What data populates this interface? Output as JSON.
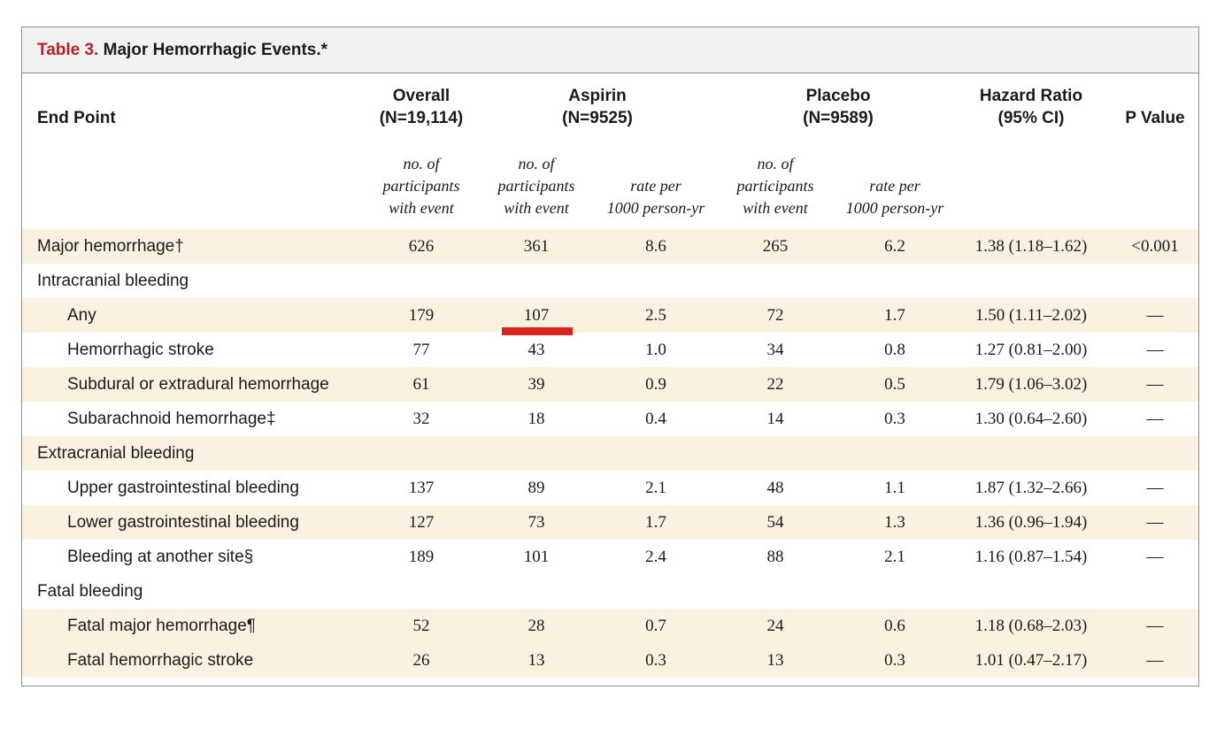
{
  "table": {
    "title_num": "Table 3.",
    "title_text": "Major Hemorrhagic Events.*",
    "headers": {
      "end_point": "End Point",
      "overall": "Overall",
      "overall_n": "(N=19,114)",
      "aspirin": "Aspirin",
      "aspirin_n": "(N=9525)",
      "placebo": "Placebo",
      "placebo_n": "(N=9589)",
      "hr": "Hazard Ratio",
      "hr_ci": "(95% CI)",
      "p": "P Value"
    },
    "subheaders": {
      "participants_1": "no. of",
      "participants_2": "participants",
      "participants_3": "with event",
      "rate_1": "rate per",
      "rate_2": "1000 person-yr"
    },
    "rows": [
      {
        "label": "Major hemorrhage†",
        "overall": "626",
        "a_n": "361",
        "a_rate": "8.6",
        "p_n": "265",
        "p_rate": "6.2",
        "hr": "1.38 (1.18–1.62)",
        "pval": "<0.001"
      },
      {
        "label": "Intracranial bleeding"
      },
      {
        "label": "Any",
        "overall": "179",
        "a_n": "107",
        "a_rate": "2.5",
        "p_n": "72",
        "p_rate": "1.7",
        "hr": "1.50 (1.11–2.02)",
        "pval": "—"
      },
      {
        "label": "Hemorrhagic stroke",
        "overall": "77",
        "a_n": "43",
        "a_rate": "1.0",
        "p_n": "34",
        "p_rate": "0.8",
        "hr": "1.27 (0.81–2.00)",
        "pval": "—"
      },
      {
        "label": "Subdural or extradural hemorrhage",
        "overall": "61",
        "a_n": "39",
        "a_rate": "0.9",
        "p_n": "22",
        "p_rate": "0.5",
        "hr": "1.79 (1.06–3.02)",
        "pval": "—"
      },
      {
        "label": "Subarachnoid hemorrhage‡",
        "overall": "32",
        "a_n": "18",
        "a_rate": "0.4",
        "p_n": "14",
        "p_rate": "0.3",
        "hr": "1.30 (0.64–2.60)",
        "pval": "—"
      },
      {
        "label": "Extracranial bleeding"
      },
      {
        "label": "Upper gastrointestinal bleeding",
        "overall": "137",
        "a_n": "89",
        "a_rate": "2.1",
        "p_n": "48",
        "p_rate": "1.1",
        "hr": "1.87 (1.32–2.66)",
        "pval": "—"
      },
      {
        "label": "Lower gastrointestinal bleeding",
        "overall": "127",
        "a_n": "73",
        "a_rate": "1.7",
        "p_n": "54",
        "p_rate": "1.3",
        "hr": "1.36 (0.96–1.94)",
        "pval": "—"
      },
      {
        "label": "Bleeding at another site§",
        "overall": "189",
        "a_n": "101",
        "a_rate": "2.4",
        "p_n": "88",
        "p_rate": "2.1",
        "hr": "1.16 (0.87–1.54)",
        "pval": "—"
      },
      {
        "label": "Fatal bleeding"
      },
      {
        "label": "Fatal major hemorrhage¶",
        "overall": "52",
        "a_n": "28",
        "a_rate": "0.7",
        "p_n": "24",
        "p_rate": "0.6",
        "hr": "1.18 (0.68–2.03)",
        "pval": "—"
      },
      {
        "label": "Fatal hemorrhagic stroke",
        "overall": "26",
        "a_n": "13",
        "a_rate": "0.3",
        "p_n": "13",
        "p_rate": "0.3",
        "hr": "1.01 (0.47–2.17)",
        "pval": "—"
      }
    ],
    "colors": {
      "title_accent": "#b5202b",
      "row_shade": "#fbf1e0",
      "annotation_mark": "#d8241c"
    }
  }
}
